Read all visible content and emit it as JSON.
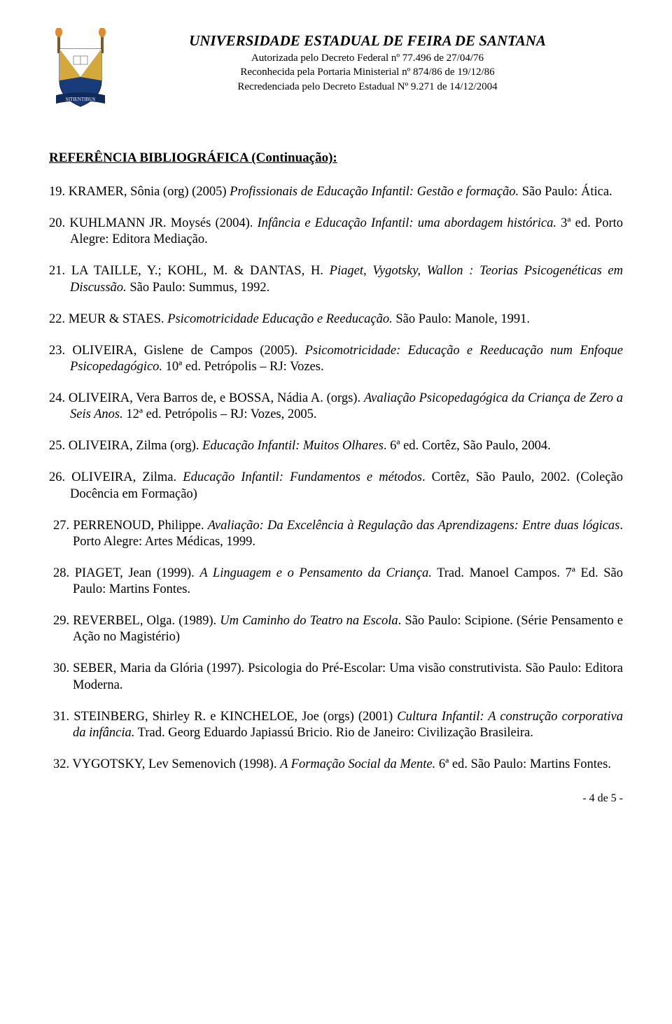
{
  "header": {
    "university": "UNIVERSIDADE ESTADUAL DE FEIRA DE SANTANA",
    "line1": "Autorizada pelo Decreto Federal nº 77.496 de 27/04/76",
    "line2": "Reconhecida pela Portaria Ministerial nº 874/86 de 19/12/86",
    "line3": "Recredenciada pelo Decreto Estadual Nº 9.271 de 14/12/2004"
  },
  "sectionTitle": "REFERÊNCIA BIBLIOGRÁFICA (Continuação):",
  "references": [
    {
      "num": "19.",
      "pre": "KRAMER, Sônia (org) (2005) ",
      "ital": "Profissionais de Educação Infantil: Gestão e formação.",
      "post": " São Paulo: Ática."
    },
    {
      "num": "20.",
      "pre": "KUHLMANN JR. Moysés (2004). ",
      "ital": "Infância e Educação Infantil: uma abordagem histórica.",
      "post": " 3ª ed. Porto Alegre: Editora Mediação."
    },
    {
      "num": "21.",
      "pre": "LA TAILLE, Y.; KOHL, M. & DANTAS, H. ",
      "ital": "Piaget, Vygotsky, Wallon : Teorias Psicogenéticas em Discussão.",
      "post": " São Paulo: Summus, 1992."
    },
    {
      "num": "22.",
      "pre": "MEUR & STAES. ",
      "ital": "Psicomotricidade Educação e Reeducação.",
      "post": "  São  Paulo:  Manole, 1991."
    },
    {
      "num": "23.",
      "pre": "OLIVEIRA, Gislene de Campos (2005). ",
      "ital": "Psicomotricidade: Educação e Reeducação num Enfoque Psicopedagógico.",
      "post": " 10ª ed. Petrópolis – RJ: Vozes."
    },
    {
      "num": "24.",
      "pre": "OLIVEIRA, Vera Barros de, e BOSSA, Nádia A. (orgs). ",
      "ital": "Avaliação Psicopedagógica da Criança de Zero a Seis Anos.",
      "post": " 12ª ed. Petrópolis – RJ: Vozes, 2005."
    },
    {
      "num": "25.",
      "pre": "OLIVEIRA, Zilma (org). ",
      "ital": "Educação Infantil: Muitos Olhares",
      "post": ". 6ª ed. Cortêz, São Paulo, 2004."
    },
    {
      "num": "26.",
      "pre": "OLIVEIRA, Zilma. ",
      "ital": "Educação Infantil: Fundamentos e métodos",
      "post": ". Cortêz, São Paulo, 2002. (Coleção Docência em Formação)"
    },
    {
      "num": "27.",
      "pre": "PERRENOUD, Philippe. ",
      "ital": "Avaliação: Da Excelência à Regulação das Aprendizagens: Entre duas lógicas",
      "post": ". Porto Alegre: Artes Médicas, 1999.",
      "indent": true
    },
    {
      "num": "28.",
      "pre": "PIAGET, Jean (1999). ",
      "ital": "A Linguagem e o Pensamento da Criança.",
      "post": " Trad. Manoel Campos. 7ª Ed. São Paulo: Martins Fontes.",
      "indent": true
    },
    {
      "num": "29.",
      "pre": "REVERBEL, Olga. (1989). ",
      "ital": "Um Caminho do Teatro na Escola",
      "post": ". São Paulo: Scipione. (Série Pensamento e Ação no Magistério)",
      "indent": true
    },
    {
      "num": "30.",
      "pre": "SEBER, Maria da Glória (1997). Psicologia do Pré-Escolar: Uma visão construtivista. São Paulo: Editora Moderna.",
      "ital": "",
      "post": "",
      "indent": true
    },
    {
      "num": "31.",
      "pre": "STEINBERG, Shirley R. e KINCHELOE, Joe (orgs) (2001) ",
      "ital": "Cultura Infantil: A construção corporativa da infância.",
      "post": " Trad. Georg Eduardo Japiassú Bricio. Rio de Janeiro: Civilização Brasileira.",
      "indent": true
    },
    {
      "num": "32.",
      "pre": "VYGOTSKY, Lev Semenovich (1998). ",
      "ital": "A Formação Social da Mente.",
      "post": " 6ª ed. São Paulo: Martins Fontes.",
      "indent": true
    }
  ],
  "pageNumber": "- 4 de 5 -",
  "colors": {
    "shield_blue": "#1a3b7a",
    "shield_gold": "#d4a83a",
    "shield_white": "#ffffff",
    "shield_banner": "#102a5c",
    "torch_flame": "#e08b2e",
    "torch_handle": "#7a5a2a"
  }
}
